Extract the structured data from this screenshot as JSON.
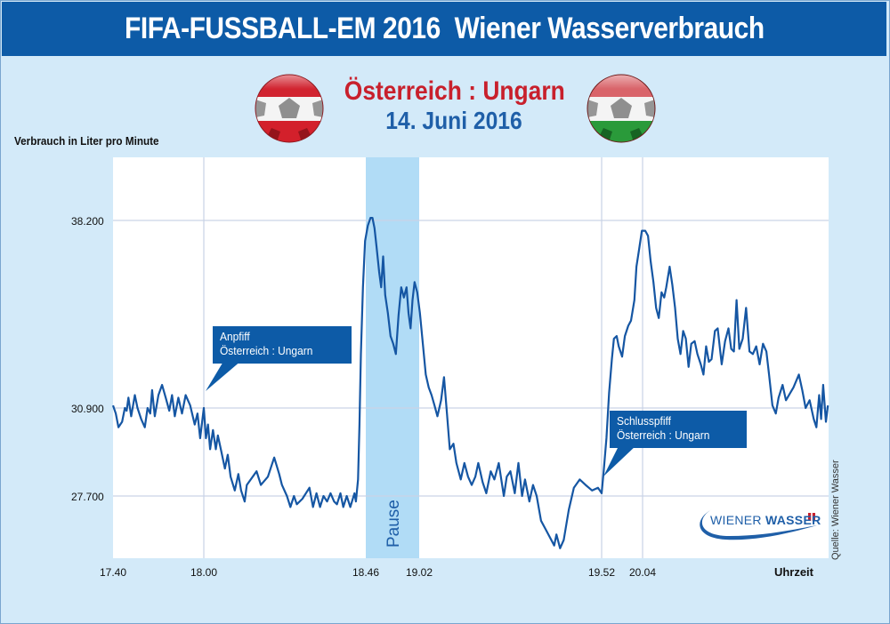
{
  "header": {
    "title": "FIFA-FUSSBALL-EM 2016  Wiener Wasserverbrauch"
  },
  "match": {
    "teams": "Österreich : Ungarn",
    "date": "14. Juni 2016"
  },
  "flags": {
    "austria": "austria-flag-ball",
    "hungary": "hungary-flag-ball"
  },
  "source": "Quelle: Wiener Wasser",
  "logo": {
    "word1": "WIENER",
    "word2": "WASSER"
  },
  "colors": {
    "brand": "#0d5ba7",
    "red": "#c8202c",
    "line": "#1556a3",
    "pause": "#b1dcf6",
    "background": "#d3eaf9"
  },
  "chart_data": {
    "type": "line",
    "title": "FIFA-FUSSBALL-EM 2016  Wiener Wasserverbrauch",
    "ylabel": "Verbrauch in Liter pro Minute",
    "xlabel": "Uhrzeit",
    "yticks": [
      {
        "value": 38200,
        "label": "38.200"
      },
      {
        "value": 30900,
        "label": "30.900"
      },
      {
        "value": 27700,
        "label": "27.700"
      }
    ],
    "xticks": [
      {
        "minute": 0,
        "label": "17.40"
      },
      {
        "minute": 20,
        "label": "18.00"
      },
      {
        "minute": 66,
        "label": "18.46"
      },
      {
        "minute": 82,
        "label": "19.02"
      },
      {
        "minute": 132,
        "label": "19.52"
      },
      {
        "minute": 144,
        "label": "20.04"
      }
    ],
    "xlim_minutes": [
      0,
      194
    ],
    "ylim": [
      25650,
      40300
    ],
    "bands": [
      {
        "label": "Pause",
        "from_minute": 66,
        "to_minute": 82
      }
    ],
    "annotations": [
      {
        "minute": 20,
        "value": 30500,
        "line1": "Anpfiff",
        "line2": "Österreich : Ungarn"
      },
      {
        "minute": 132,
        "value": 28300,
        "line1": "Schlusspfiff",
        "line2": "Österreich : Ungarn"
      }
    ],
    "series": [
      {
        "name": "Verbrauch",
        "points": [
          [
            0,
            31000
          ],
          [
            0.6,
            30700
          ],
          [
            1.2,
            30200
          ],
          [
            2,
            30400
          ],
          [
            2.6,
            30900
          ],
          [
            3,
            30800
          ],
          [
            3.4,
            31300
          ],
          [
            4,
            30600
          ],
          [
            4.8,
            31400
          ],
          [
            5.4,
            30900
          ],
          [
            6.2,
            30500
          ],
          [
            7,
            30200
          ],
          [
            7.6,
            30900
          ],
          [
            8.2,
            30700
          ],
          [
            8.6,
            31600
          ],
          [
            9.2,
            30600
          ],
          [
            10,
            31400
          ],
          [
            10.8,
            31800
          ],
          [
            11.6,
            31300
          ],
          [
            12.4,
            30800
          ],
          [
            13,
            31400
          ],
          [
            13.6,
            30600
          ],
          [
            14.4,
            31300
          ],
          [
            15.2,
            30700
          ],
          [
            16,
            31400
          ],
          [
            17,
            31000
          ],
          [
            18,
            30300
          ],
          [
            18.6,
            30700
          ],
          [
            19.2,
            29800
          ],
          [
            20,
            30900
          ],
          [
            20.6,
            29800
          ],
          [
            21.2,
            30300
          ],
          [
            21.8,
            29400
          ],
          [
            22.6,
            30100
          ],
          [
            23.4,
            29400
          ],
          [
            24,
            29900
          ],
          [
            25,
            29300
          ],
          [
            26,
            28700
          ],
          [
            26.8,
            29200
          ],
          [
            27.6,
            28400
          ],
          [
            28.8,
            27900
          ],
          [
            29.8,
            28500
          ],
          [
            30.6,
            27900
          ],
          [
            31.6,
            27500
          ],
          [
            32.2,
            28100
          ],
          [
            35,
            28600
          ],
          [
            36.2,
            28100
          ],
          [
            38.2,
            28400
          ],
          [
            40,
            29100
          ],
          [
            41.4,
            28500
          ],
          [
            42.2,
            28100
          ],
          [
            43.6,
            27700
          ],
          [
            44.6,
            27300
          ],
          [
            45.6,
            27700
          ],
          [
            46.4,
            27400
          ],
          [
            48,
            27600
          ],
          [
            50,
            28000
          ],
          [
            51,
            27300
          ],
          [
            52,
            27800
          ],
          [
            53,
            27300
          ],
          [
            54,
            27700
          ],
          [
            55,
            27500
          ],
          [
            56,
            27800
          ],
          [
            57,
            27500
          ],
          [
            57.8,
            27400
          ],
          [
            58.8,
            27800
          ],
          [
            59.6,
            27300
          ],
          [
            60.6,
            27700
          ],
          [
            61.6,
            27300
          ],
          [
            62.8,
            27800
          ],
          [
            63.2,
            27500
          ],
          [
            63.8,
            28300
          ],
          [
            64.2,
            30300
          ],
          [
            64.6,
            33000
          ],
          [
            65.2,
            35600
          ],
          [
            65.8,
            37400
          ],
          [
            66.6,
            38000
          ],
          [
            67.4,
            38300
          ],
          [
            68,
            38300
          ],
          [
            68.6,
            37900
          ],
          [
            69.2,
            37200
          ],
          [
            70,
            36200
          ],
          [
            70.6,
            35600
          ],
          [
            71.2,
            36800
          ],
          [
            71.8,
            35300
          ],
          [
            72.6,
            34600
          ],
          [
            73.4,
            33700
          ],
          [
            74.2,
            33400
          ],
          [
            75,
            33000
          ],
          [
            75.8,
            34500
          ],
          [
            76.6,
            35600
          ],
          [
            77.4,
            35200
          ],
          [
            78.2,
            35600
          ],
          [
            78.8,
            34600
          ],
          [
            79.4,
            34000
          ],
          [
            80,
            35100
          ],
          [
            80.6,
            35800
          ],
          [
            81.4,
            35400
          ],
          [
            82.2,
            34600
          ],
          [
            83,
            33400
          ],
          [
            83.8,
            32200
          ],
          [
            84.6,
            31700
          ],
          [
            85.4,
            31400
          ],
          [
            86.2,
            31000
          ],
          [
            87,
            30600
          ],
          [
            88,
            31200
          ],
          [
            88.8,
            32100
          ],
          [
            89.6,
            30700
          ],
          [
            90.4,
            29400
          ],
          [
            91.4,
            29600
          ],
          [
            92.2,
            28900
          ],
          [
            93.4,
            28300
          ],
          [
            94.4,
            28900
          ],
          [
            95.4,
            28400
          ],
          [
            96.4,
            28100
          ],
          [
            97.4,
            28400
          ],
          [
            98.2,
            28900
          ],
          [
            99.4,
            28200
          ],
          [
            100.4,
            27800
          ],
          [
            101.6,
            28600
          ],
          [
            102.6,
            28300
          ],
          [
            103.8,
            28900
          ],
          [
            105.2,
            27700
          ],
          [
            106,
            28400
          ],
          [
            107,
            28600
          ],
          [
            108.2,
            27800
          ],
          [
            109.2,
            28900
          ],
          [
            110.2,
            27700
          ],
          [
            111,
            28300
          ],
          [
            112.2,
            27500
          ],
          [
            113.2,
            28100
          ],
          [
            114.2,
            27700
          ],
          [
            115.4,
            26800
          ],
          [
            116.6,
            26500
          ],
          [
            117.8,
            26200
          ],
          [
            119,
            25900
          ],
          [
            119.6,
            26300
          ],
          [
            120.6,
            25800
          ],
          [
            121.6,
            26100
          ],
          [
            123,
            27200
          ],
          [
            124.4,
            28000
          ],
          [
            126,
            28300
          ],
          [
            127.6,
            28100
          ],
          [
            129.4,
            27900
          ],
          [
            131,
            28000
          ],
          [
            132,
            27800
          ],
          [
            132.6,
            28600
          ],
          [
            133.4,
            29800
          ],
          [
            134.2,
            31500
          ],
          [
            135,
            32800
          ],
          [
            135.6,
            33600
          ],
          [
            136.4,
            33700
          ],
          [
            137,
            33300
          ],
          [
            138,
            32900
          ],
          [
            138.8,
            33700
          ],
          [
            139.8,
            34100
          ],
          [
            140.6,
            34300
          ],
          [
            141.6,
            35100
          ],
          [
            142.2,
            36400
          ],
          [
            143,
            37100
          ],
          [
            143.8,
            37800
          ],
          [
            144.8,
            37800
          ],
          [
            145.6,
            37600
          ],
          [
            146.4,
            36600
          ],
          [
            147.2,
            35800
          ],
          [
            148,
            34800
          ],
          [
            148.8,
            34400
          ],
          [
            149.6,
            35400
          ],
          [
            150.4,
            35200
          ],
          [
            151,
            35600
          ],
          [
            152,
            36400
          ],
          [
            152.8,
            35700
          ],
          [
            153.6,
            34800
          ],
          [
            154.4,
            33600
          ],
          [
            155.2,
            33000
          ],
          [
            156,
            33900
          ],
          [
            156.8,
            33600
          ],
          [
            157.6,
            32500
          ],
          [
            158.4,
            33400
          ],
          [
            159.4,
            33500
          ],
          [
            160.2,
            33000
          ],
          [
            161.2,
            32600
          ],
          [
            162,
            32200
          ],
          [
            162.8,
            33300
          ],
          [
            163.6,
            32700
          ],
          [
            164.4,
            32800
          ],
          [
            165.4,
            33900
          ],
          [
            166.2,
            34000
          ],
          [
            167.4,
            32600
          ],
          [
            168.4,
            33500
          ],
          [
            169.4,
            34000
          ],
          [
            170.2,
            33200
          ],
          [
            171,
            33100
          ],
          [
            171.8,
            35100
          ],
          [
            172.6,
            33200
          ],
          [
            173.6,
            33600
          ],
          [
            174.6,
            34800
          ],
          [
            175.6,
            33100
          ],
          [
            176.6,
            33000
          ],
          [
            177.6,
            33300
          ],
          [
            178.6,
            32600
          ],
          [
            179.6,
            33400
          ],
          [
            180.6,
            33100
          ],
          [
            181.4,
            32200
          ],
          [
            182.4,
            31000
          ],
          [
            183.4,
            30700
          ],
          [
            184.2,
            31300
          ],
          [
            185.4,
            31800
          ],
          [
            186.4,
            31200
          ],
          [
            188.6,
            31700
          ],
          [
            190.2,
            32200
          ],
          [
            191.2,
            31600
          ],
          [
            192.2,
            30900
          ],
          [
            193.4,
            31200
          ],
          [
            194.6,
            30500
          ],
          [
            195.4,
            30200
          ],
          [
            196.2,
            31400
          ],
          [
            196.8,
            30500
          ],
          [
            197.4,
            31800
          ],
          [
            198.2,
            30400
          ],
          [
            198.8,
            31000
          ]
        ]
      }
    ]
  }
}
